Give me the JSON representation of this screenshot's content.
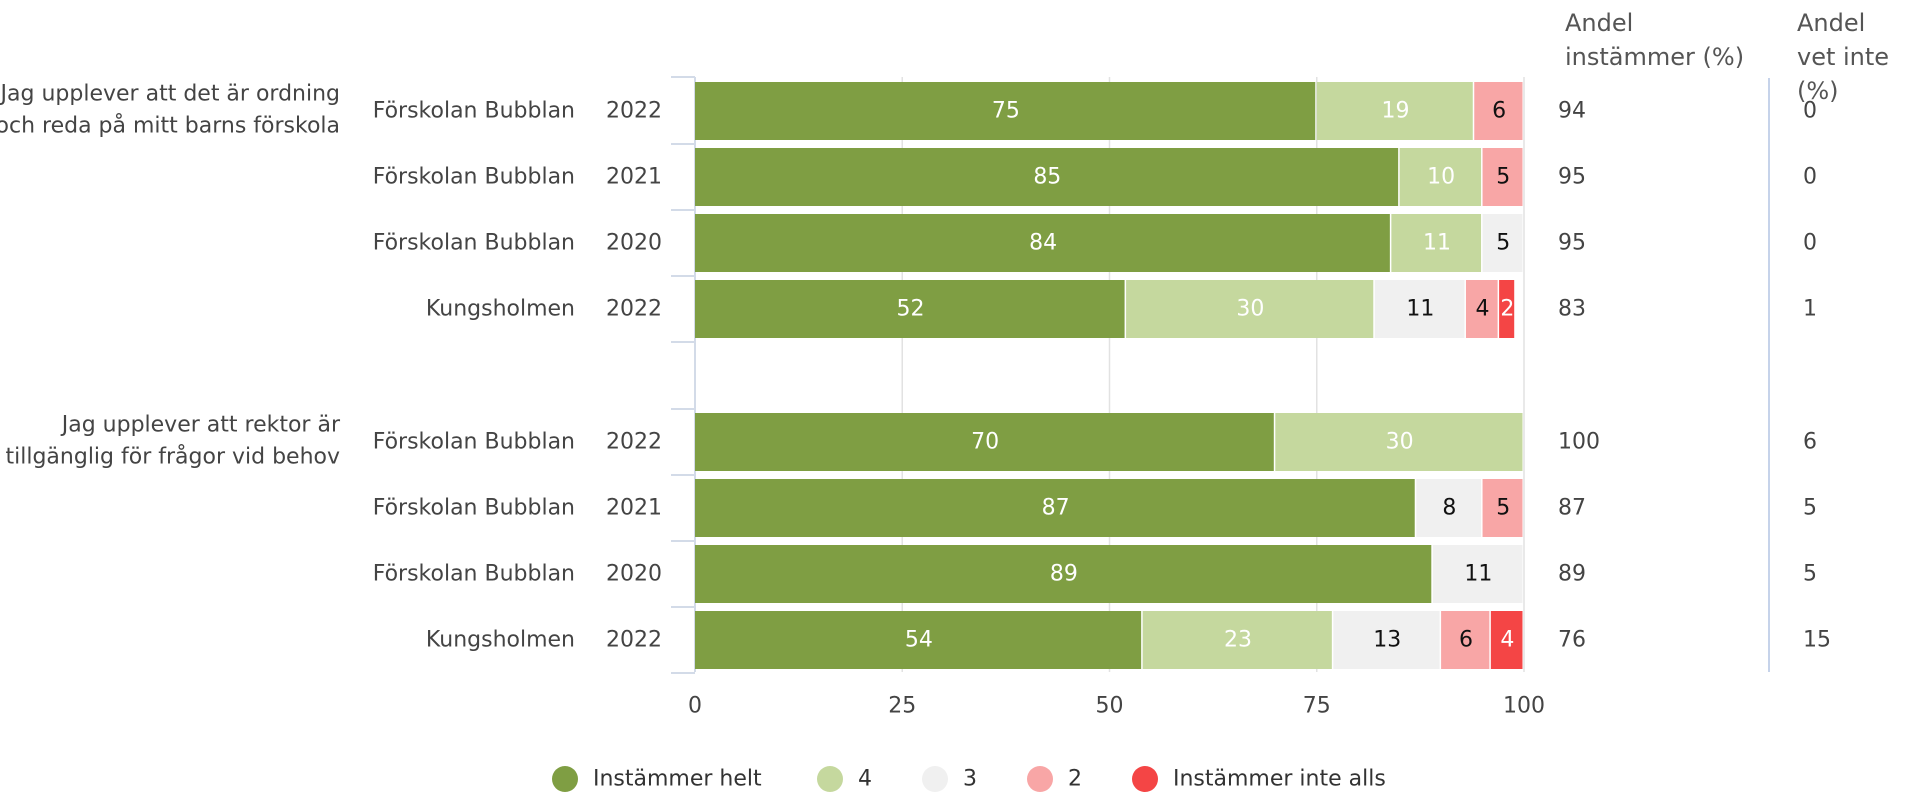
{
  "headers": {
    "col1_line1": "Andel",
    "col1_line2": "instämmer (%)",
    "col2_line1": "Andel",
    "col2_line2": "vet inte (%)"
  },
  "colors": {
    "Instämmer helt": "#7f9e43",
    "4": "#c5d89e",
    "3": "#f0f0f0",
    "2": "#f8a6a6",
    "Instämmer inte alls": "#f44545"
  },
  "chart_data": {
    "type": "bar",
    "orientation": "horizontal",
    "stacked": true,
    "xlim": [
      0,
      100
    ],
    "x_ticks": [
      0,
      25,
      50,
      75,
      100
    ],
    "grid": true,
    "legend_position": "bottom",
    "series_names": [
      "Instämmer helt",
      "4",
      "3",
      "2",
      "Instämmer inte alls"
    ],
    "groups": [
      {
        "question": [
          "Jag upplever att det är ordning",
          "och reda på mitt barns förskola"
        ],
        "rows": [
          {
            "unit": "Förskolan Bubblan",
            "year": "2022",
            "values": [
              75,
              19,
              0,
              6,
              0
            ],
            "andel_instammer": 94,
            "andel_vet_inte": 0
          },
          {
            "unit": "Förskolan Bubblan",
            "year": "2021",
            "values": [
              85,
              10,
              0,
              5,
              0
            ],
            "andel_instammer": 95,
            "andel_vet_inte": 0
          },
          {
            "unit": "Förskolan Bubblan",
            "year": "2020",
            "values": [
              84,
              11,
              5,
              0,
              0
            ],
            "andel_instammer": 95,
            "andel_vet_inte": 0
          },
          {
            "unit": "Kungsholmen",
            "year": "2022",
            "values": [
              52,
              30,
              11,
              4,
              2
            ],
            "andel_instammer": 83,
            "andel_vet_inte": 1
          }
        ]
      },
      {
        "question": [
          "Jag upplever att rektor är",
          "tillgänglig för frågor vid behov"
        ],
        "rows": [
          {
            "unit": "Förskolan Bubblan",
            "year": "2022",
            "values": [
              70,
              30,
              0,
              0,
              0
            ],
            "andel_instammer": 100,
            "andel_vet_inte": 6
          },
          {
            "unit": "Förskolan Bubblan",
            "year": "2021",
            "values": [
              87,
              0,
              8,
              5,
              0
            ],
            "andel_instammer": 87,
            "andel_vet_inte": 5
          },
          {
            "unit": "Förskolan Bubblan",
            "year": "2020",
            "values": [
              89,
              0,
              11,
              0,
              0
            ],
            "andel_instammer": 89,
            "andel_vet_inte": 5
          },
          {
            "unit": "Kungsholmen",
            "year": "2022",
            "values": [
              54,
              23,
              13,
              6,
              4
            ],
            "andel_instammer": 76,
            "andel_vet_inte": 15
          }
        ]
      }
    ]
  }
}
